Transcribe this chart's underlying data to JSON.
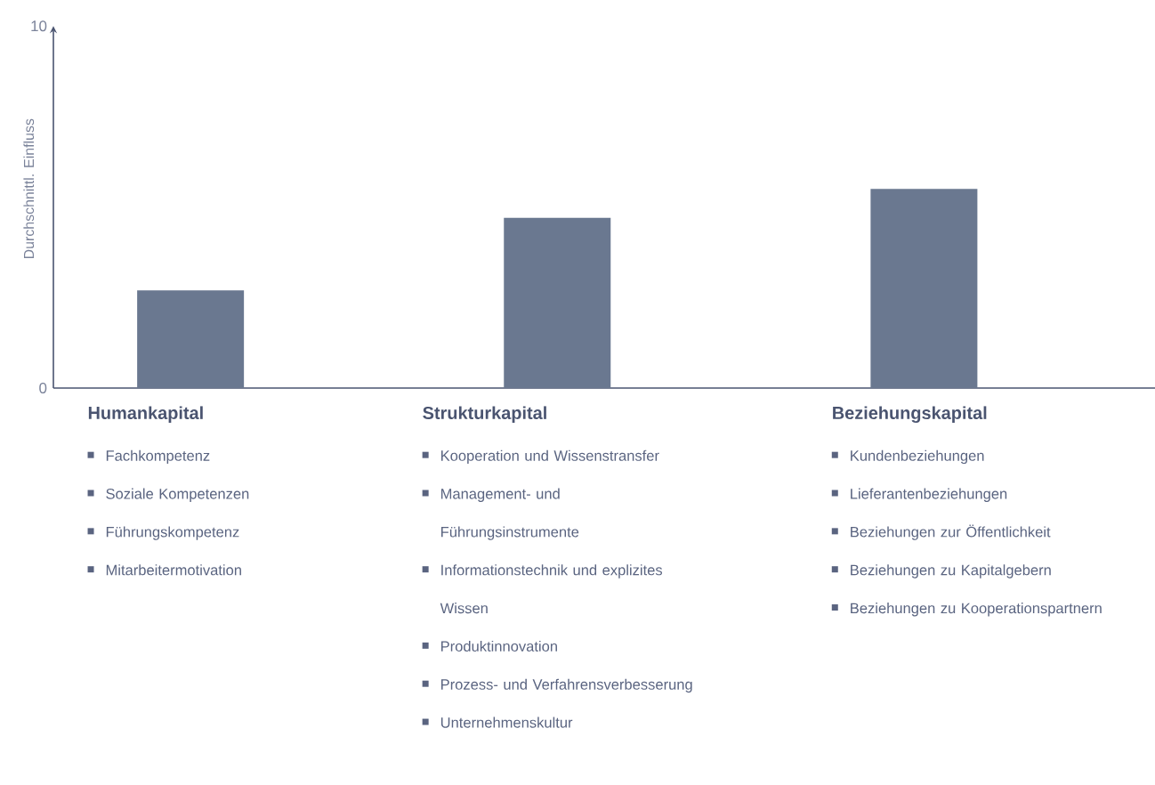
{
  "chart_data": {
    "type": "bar",
    "ylabel": "Durchschnittl. Einfluss",
    "categories": [
      "Humankapital",
      "Strukturkapital",
      "Beziehungskapital"
    ],
    "values": [
      2.7,
      4.7,
      5.5
    ],
    "color": "#6a7890",
    "ylim": [
      0,
      10
    ],
    "yticks": [
      0,
      10
    ],
    "annotations": [
      "Fachkompetenz",
      "Soziale Kompetenzen",
      "Führungskompetenz",
      "Mitarbeitermotivation",
      "Kooperation und Wissenstransfer",
      "Management- und Führungsinstrumente",
      "Informationstechnik und explizites Wissen",
      "Produktinnovation",
      "Prozess- und Verfahrensverbesserung",
      "Unternehmenskultur",
      "Kundenbeziehungen",
      "Lieferantenbeziehungen",
      "Beziehungen zur Öffentlichkeit",
      "Beziehungen zu Kapitalgebern",
      "Beziehungen zu Kooperationspartnern"
    ]
  }
}
